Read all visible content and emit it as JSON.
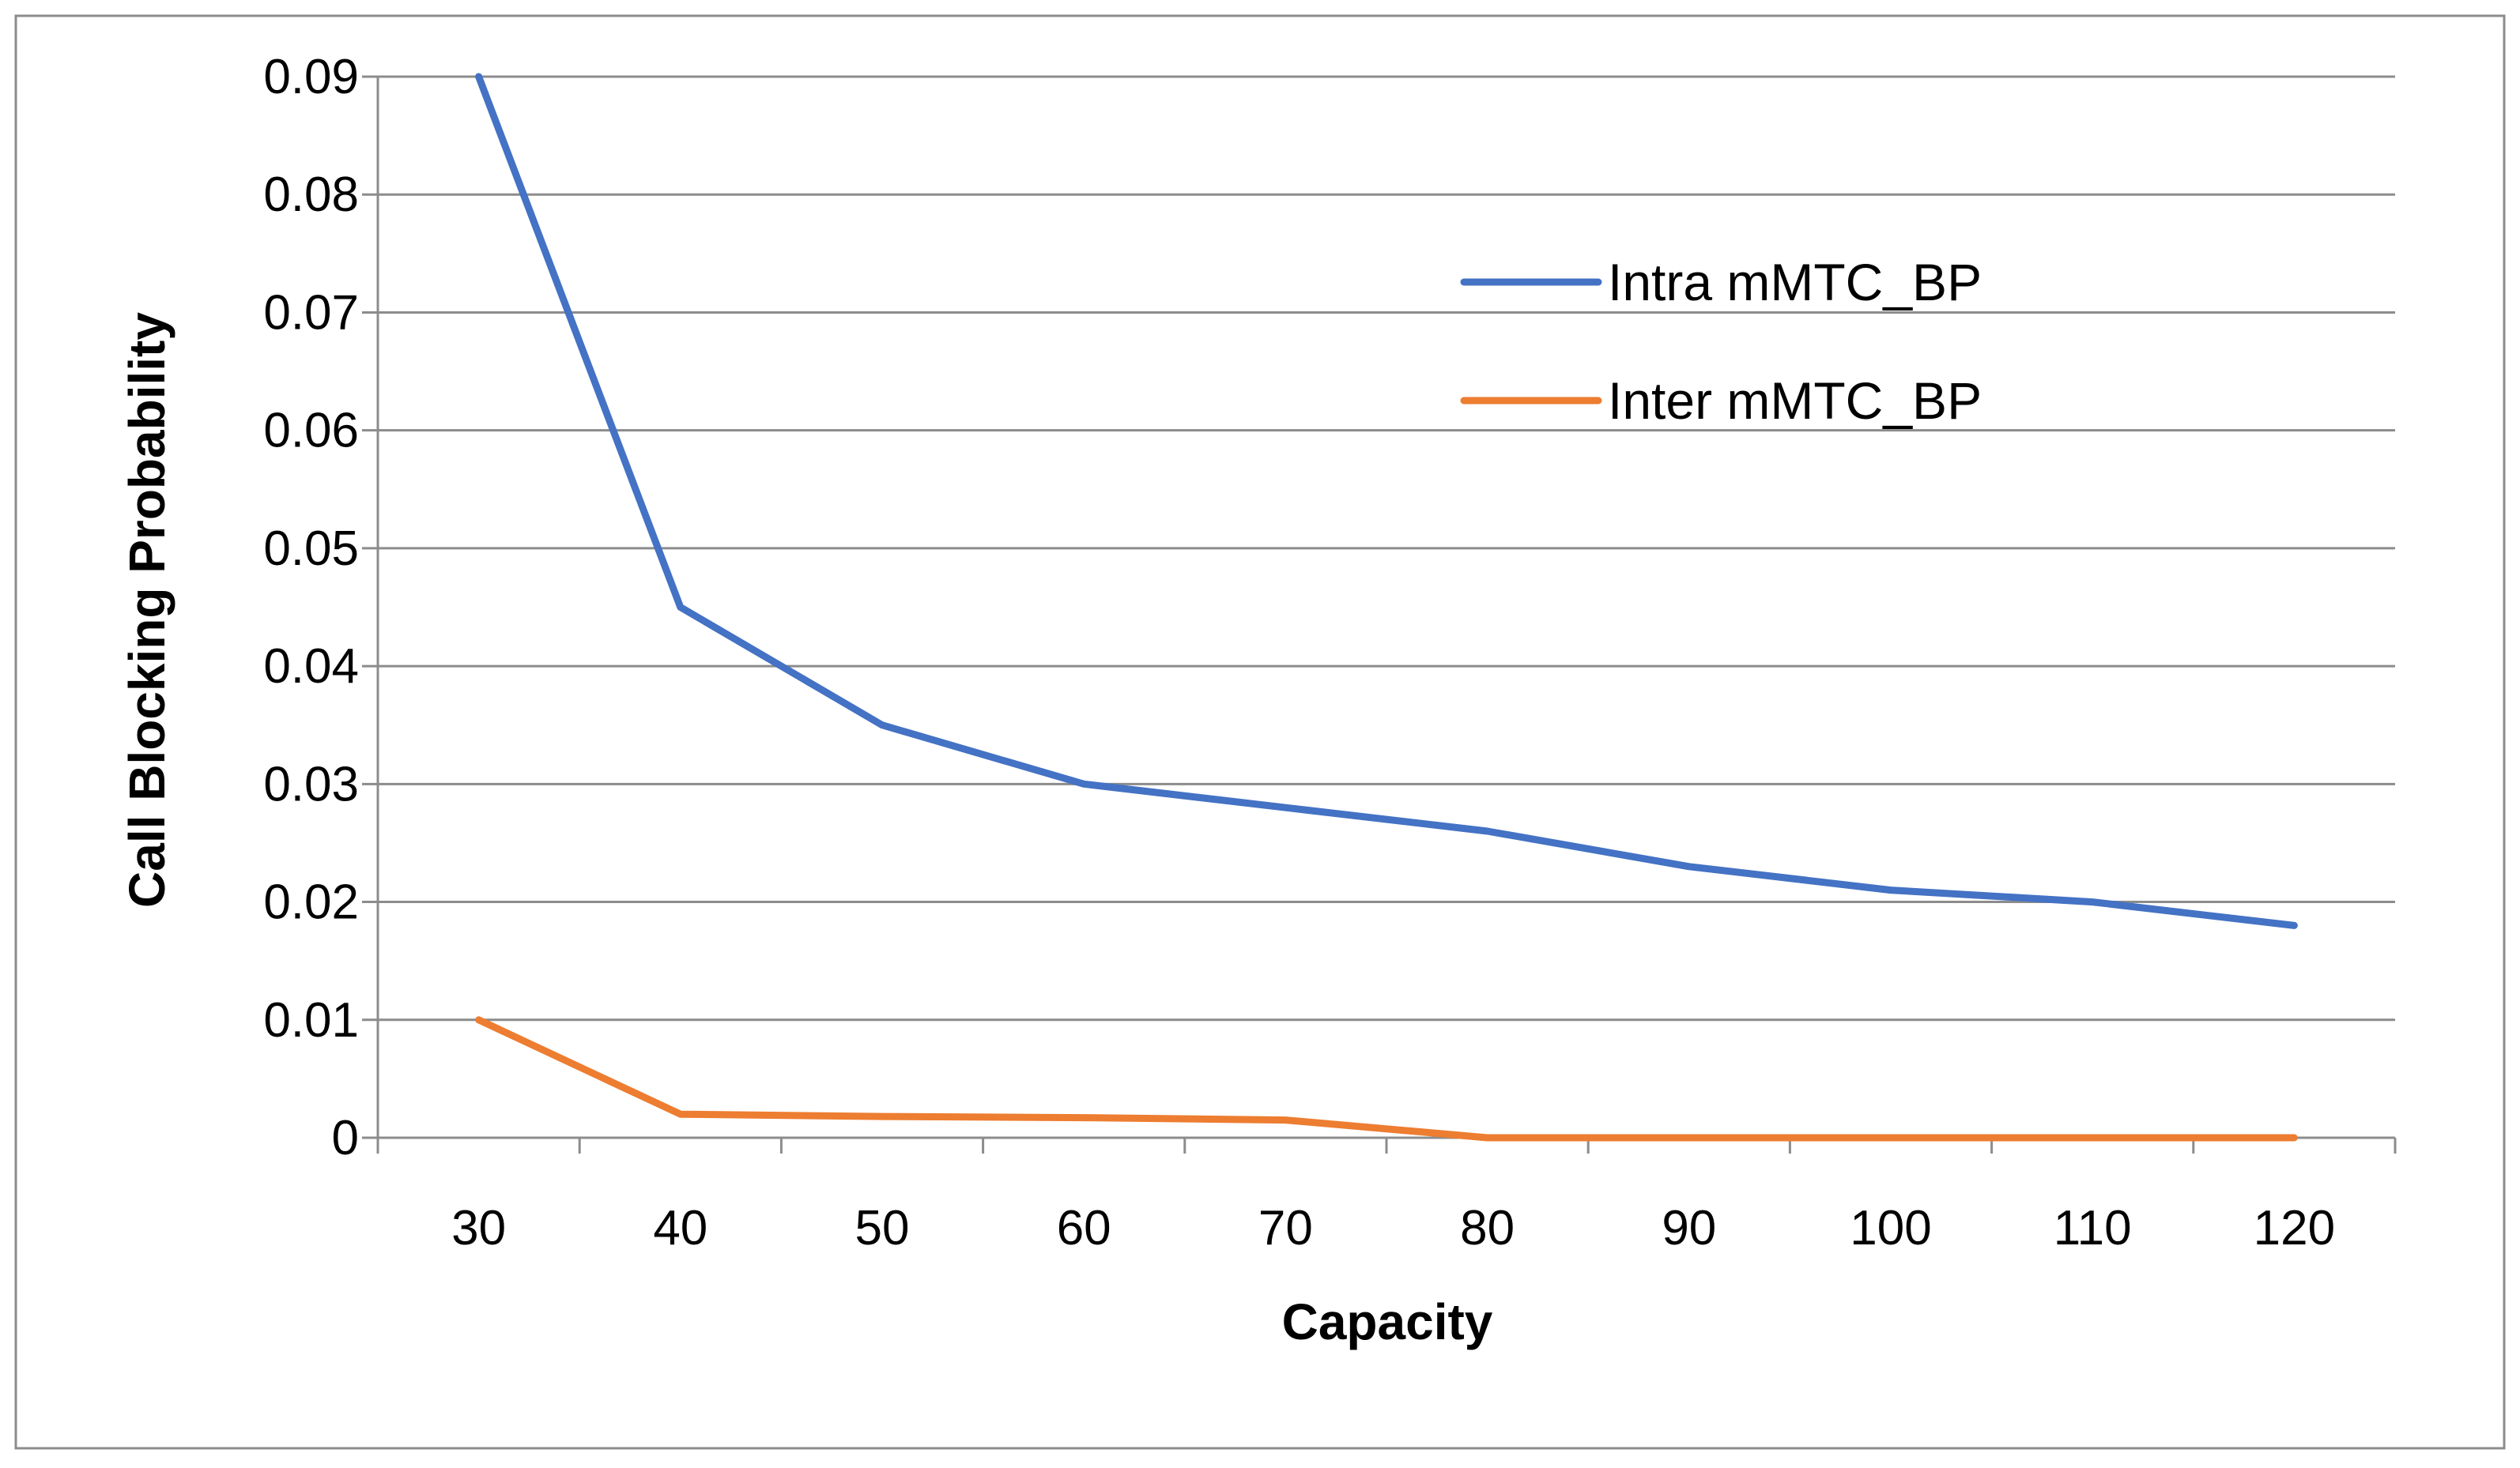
{
  "chart_data": {
    "type": "line",
    "title": "",
    "xlabel": "Capacity",
    "ylabel": "Call Blocking Probability",
    "x": [
      30,
      40,
      50,
      60,
      70,
      80,
      90,
      100,
      110,
      120
    ],
    "x_tick_labels": [
      "30",
      "40",
      "50",
      "60",
      "70",
      "80",
      "90",
      "100",
      "110",
      "120"
    ],
    "y_tick_labels": [
      "0",
      "0.01",
      "0.02",
      "0.03",
      "0.04",
      "0.05",
      "0.06",
      "0.07",
      "0.08",
      "0.09"
    ],
    "y_ticks": [
      0,
      0.01,
      0.02,
      0.03,
      0.04,
      0.05,
      0.06,
      0.07,
      0.08,
      0.09
    ],
    "ylim": [
      0,
      0.09
    ],
    "grid": true,
    "legend_position": "top-right",
    "series": [
      {
        "name": "Intra mMTC_BP",
        "color": "#4472C4",
        "values": [
          0.09,
          0.045,
          0.035,
          0.03,
          0.028,
          0.026,
          0.023,
          0.021,
          0.02,
          0.018
        ]
      },
      {
        "name": "Inter mMTC_BP",
        "color": "#ED7D31",
        "values": [
          0.01,
          0.002,
          0.0018,
          0.0017,
          0.0015,
          0.0,
          0.0,
          0.0,
          0.0,
          0.0
        ]
      }
    ]
  }
}
